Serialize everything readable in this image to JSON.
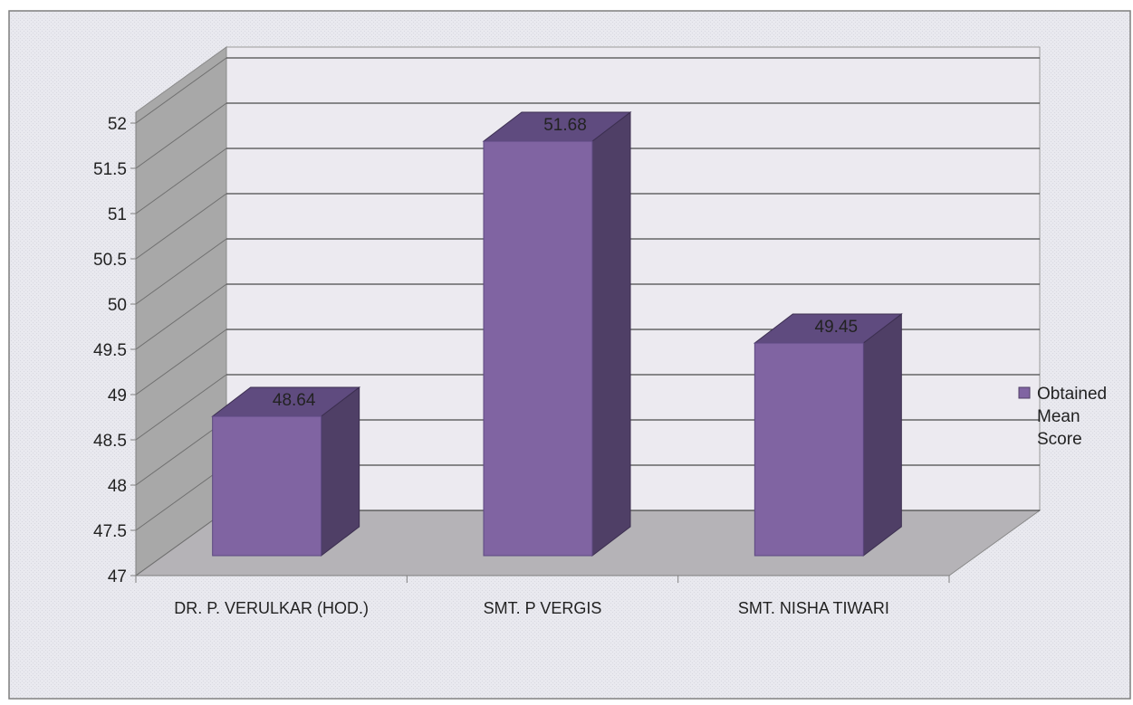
{
  "chart_data": {
    "type": "bar",
    "categories": [
      "DR. P. VERULKAR (HOD.)",
      "SMT. P VERGIS",
      "SMT. NISHA TIWARI"
    ],
    "series": [
      {
        "name": "Obtained Mean Score",
        "values": [
          48.64,
          51.68,
          49.45
        ]
      }
    ],
    "data_labels": [
      "48.64",
      "51.68",
      "49.45"
    ],
    "ylim": [
      47,
      52
    ],
    "y_ticks": [
      "47",
      "47.5",
      "48",
      "48.5",
      "49",
      "49.5",
      "50",
      "50.5",
      "51",
      "51.5",
      "52"
    ],
    "legend": {
      "entries": [
        "Obtained",
        "Mean",
        "Score"
      ],
      "position": "right"
    },
    "grid": true,
    "style": "3d-column",
    "colors": {
      "bar_front": "#8064A2",
      "bar_side": "#4F3F66",
      "bar_top": "#5F4B7F",
      "back_wall": "#ECEAF0",
      "side_wall": "#A8A8A8",
      "floor": "#B5B3B7",
      "background": "#E8E8EE",
      "frame": "#7F7F7F"
    }
  }
}
